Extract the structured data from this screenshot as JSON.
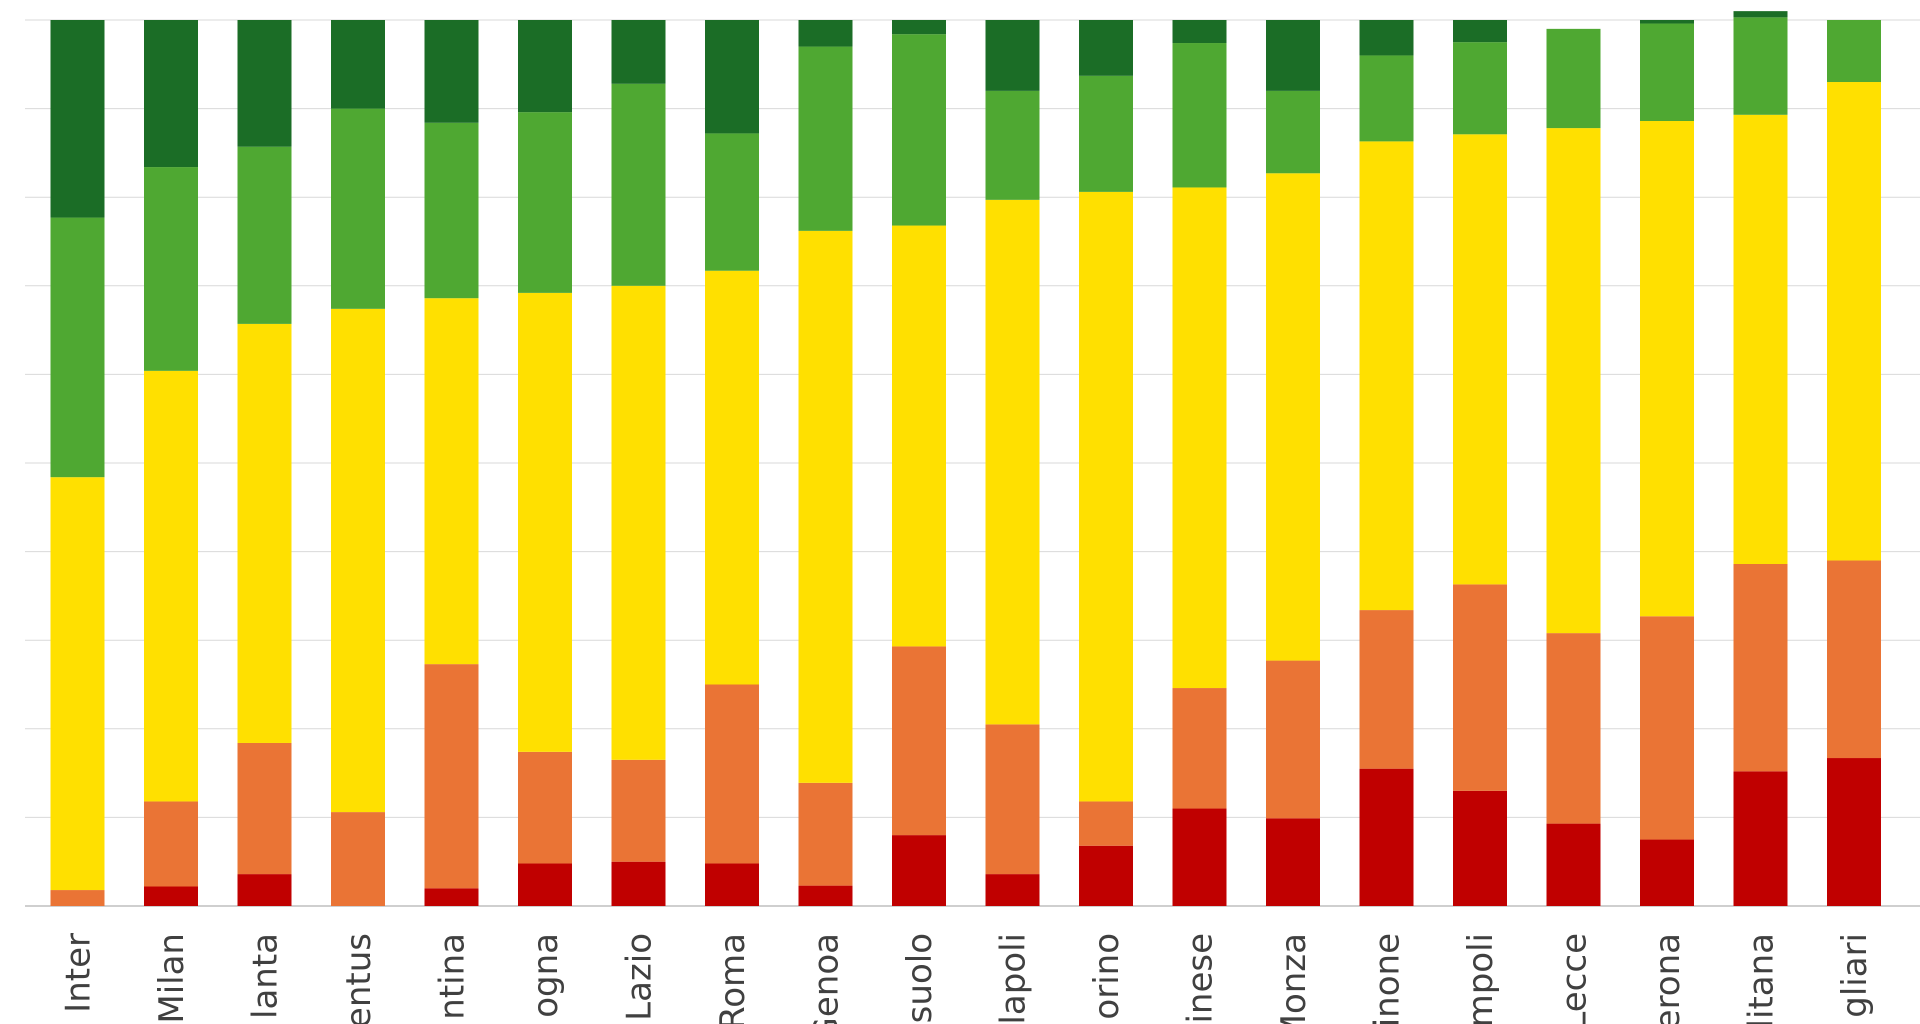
{
  "chart_data": {
    "type": "bar",
    "stacked": true,
    "percent_stacked": true,
    "grid": true,
    "legend": "none",
    "ylim": [
      0,
      100
    ],
    "categories": [
      "Inter",
      "Milan",
      "Atalanta",
      "Juventus",
      "Fiorentina",
      "Bologna",
      "Lazio",
      "Roma",
      "Genoa",
      "Sassuolo",
      "Napoli",
      "Torino",
      "Udinese",
      "Monza",
      "Frosinone",
      "Empoli",
      "Lecce",
      "Verona",
      "Salernitana",
      "Cagliari"
    ],
    "category_labels_visible": [
      "Inter",
      "Milan",
      "lanta",
      "entus",
      "ntina",
      "ogna",
      "Lazio",
      "Roma",
      "Genoa",
      "ssuolo",
      "lapoli",
      "orino",
      "inese",
      "Monza",
      "inone",
      "mpoli",
      "Lecce",
      "erona",
      "litana",
      "gliari"
    ],
    "series": [
      {
        "color": "#c00000",
        "values": [
          0,
          2.2,
          3.6,
          0,
          2.0,
          4.8,
          5.0,
          4.8,
          2.3,
          8.0,
          3.6,
          6.8,
          11.0,
          9.9,
          15.5,
          13.0,
          9.3,
          7.5,
          15.2,
          16.7
        ]
      },
      {
        "color": "#ea7435",
        "values": [
          1.8,
          9.6,
          14.8,
          10.6,
          25.3,
          12.6,
          11.5,
          20.2,
          11.6,
          21.3,
          16.9,
          5.0,
          13.6,
          17.8,
          17.9,
          23.3,
          21.5,
          25.2,
          23.4,
          22.3
        ]
      },
      {
        "color": "#ffe000",
        "values": [
          46.6,
          48.6,
          47.3,
          56.8,
          41.3,
          51.8,
          53.5,
          46.7,
          62.3,
          47.5,
          59.2,
          68.8,
          56.5,
          55.0,
          52.9,
          50.8,
          57.0,
          55.9,
          50.7,
          54.0
        ]
      },
      {
        "color": "#4fa832",
        "values": [
          29.3,
          23.0,
          20.0,
          22.6,
          19.8,
          20.4,
          22.8,
          15.5,
          20.8,
          21.6,
          12.3,
          13.1,
          16.3,
          9.3,
          9.7,
          10.4,
          11.2,
          11.0,
          11.0,
          7.0
        ]
      },
      {
        "color": "#1b6d26",
        "values": [
          22.3,
          16.6,
          14.3,
          10.0,
          11.6,
          10.4,
          7.2,
          12.8,
          3.0,
          1.6,
          8.0,
          6.3,
          2.6,
          8.0,
          4.0,
          2.5,
          0,
          0.4,
          0.7,
          0
        ]
      }
    ]
  }
}
